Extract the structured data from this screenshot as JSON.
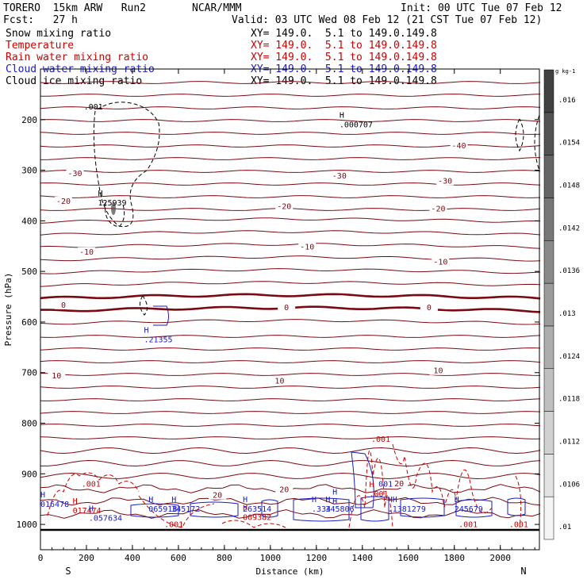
{
  "header": {
    "model": "TORERO  15km ARW   Run2",
    "org": "NCAR/MMM",
    "init": "Init: 00 UTC Tue 07 Feb 12",
    "fcst": "Fcst:   27 h",
    "valid": "Valid: 03 UTC Wed 08 Feb 12 (21 CST Tue 07 Feb 12)"
  },
  "legend": [
    {
      "name": "Snow mixing ratio",
      "color": "#000000",
      "xy": "XY= 149.0.  5.1 to 149.0.149.8"
    },
    {
      "name": "Temperature",
      "color": "#cc0000",
      "xy": "XY= 149.0.  5.1 to 149.0.149.8"
    },
    {
      "name": "Rain water mixing ratio",
      "color": "#cc0000",
      "xy": "XY= 149.0.  5.1 to 149.0.149.8"
    },
    {
      "name": "Cloud water mixing ratio",
      "color": "#1a1ac8",
      "xy": "XY= 149.0.  5.1 to 149.0.149.8"
    },
    {
      "name": "Cloud ice mixing ratio",
      "color": "#000000",
      "xy": "XY= 149.0.  5.1 to 149.0.149.8"
    }
  ],
  "chart_data": {
    "type": "cross-section",
    "xlabel": "Distance (km)",
    "ylabel": "Pressure (hPa)",
    "xlim": [
      0,
      2170
    ],
    "ylim": [
      1050,
      100
    ],
    "x_ticks": [
      0,
      200,
      400,
      600,
      800,
      1000,
      1200,
      1400,
      1600,
      1800,
      2000
    ],
    "y_ticks": [
      200,
      300,
      400,
      500,
      600,
      700,
      800,
      900,
      1000
    ],
    "left_end": "S",
    "right_end": "N",
    "colorbar": {
      "unit": "g kg-1",
      "ticks": [
        ".01",
        ".0106",
        ".0112",
        ".0118",
        ".0124",
        ".013",
        ".0136",
        ".0142",
        ".0148",
        ".0154",
        ".016"
      ]
    },
    "temperature_labels": [
      {
        "text": "-30",
        "x": 150,
        "p": 310
      },
      {
        "text": "-20",
        "x": 100,
        "p": 365
      },
      {
        "text": "-10",
        "x": 200,
        "p": 465
      },
      {
        "text": "0",
        "x": 100,
        "p": 570
      },
      {
        "text": "0",
        "x": 1070,
        "p": 575
      },
      {
        "text": "0",
        "x": 1690,
        "p": 575
      },
      {
        "text": "-10",
        "x": 1160,
        "p": 455
      },
      {
        "text": "-10",
        "x": 1740,
        "p": 485
      },
      {
        "text": "-20",
        "x": 1060,
        "p": 375
      },
      {
        "text": "-20",
        "x": 1730,
        "p": 380
      },
      {
        "text": "-30",
        "x": 1300,
        "p": 315
      },
      {
        "text": "-30",
        "x": 1760,
        "p": 325
      },
      {
        "text": "-40",
        "x": 1820,
        "p": 255
      },
      {
        "text": "10",
        "x": 70,
        "p": 710
      },
      {
        "text": "10",
        "x": 1040,
        "p": 720
      },
      {
        "text": "10",
        "x": 1730,
        "p": 700
      },
      {
        "text": "20",
        "x": 770,
        "p": 946
      },
      {
        "text": "20",
        "x": 1060,
        "p": 935
      },
      {
        "text": "20",
        "x": 1560,
        "p": 923
      }
    ],
    "extrema": [
      {
        "mark": "H",
        "value": ".000707",
        "x": 1300,
        "p": 215,
        "color": "#000000"
      },
      {
        "mark": "H",
        "value": "125939",
        "x": 250,
        "p": 370,
        "color": "#000000"
      },
      {
        "mark": "H",
        "value": ".21355",
        "x": 450,
        "p": 640,
        "color": "#1a1ac8"
      },
      {
        "mark": "H",
        "value": "016478",
        "x": 0,
        "p": 965,
        "color": "#1a1ac8"
      },
      {
        "mark": "H",
        "value": "017474",
        "x": 140,
        "p": 978,
        "color": "#cc0000"
      },
      {
        "mark": "H",
        "value": ".057634",
        "x": 210,
        "p": 993,
        "color": "#1a1ac8"
      },
      {
        "mark": "H",
        "value": "06591B",
        "x": 470,
        "p": 975,
        "color": "#1a1ac8"
      },
      {
        "mark": "H",
        "value": "345172",
        "x": 570,
        "p": 975,
        "color": "#1a1ac8"
      },
      {
        "mark": "H",
        "value": "263514",
        "x": 880,
        "p": 975,
        "color": "#1a1ac8"
      },
      {
        "mark": "H",
        "value": "009382",
        "x": 880,
        "p": 991,
        "color": "#cc0000"
      },
      {
        "mark": "H",
        "value": ".334",
        "x": 1180,
        "p": 975,
        "color": "#1a1ac8"
      },
      {
        "mark": "H",
        "value": "345806",
        "x": 1240,
        "p": 975,
        "color": "#1a1ac8"
      },
      {
        "mark": "H",
        "value": "H",
        "x": 1270,
        "p": 960,
        "color": "#1a1ac8"
      },
      {
        "mark": "HH",
        "value": ".1381279",
        "x": 1510,
        "p": 975,
        "color": "#1a1ac8"
      },
      {
        "mark": "H",
        "value": "245679",
        "x": 1800,
        "p": 975,
        "color": "#1a1ac8"
      },
      {
        "mark": "H",
        "value": ".001",
        "x": 1430,
        "p": 945,
        "color": "#cc0000"
      },
      {
        "mark": "",
        "value": "001",
        "x": 1470,
        "p": 925,
        "color": "#1a1ac8"
      }
    ],
    "snow_labels": [
      {
        "text": ".001",
        "x": 230,
        "p": 180
      },
      {
        "text": ".001",
        "x": 220,
        "p": 925
      },
      {
        "text": ".001",
        "x": 580,
        "p": 1005
      },
      {
        "text": ".001",
        "x": 1480,
        "p": 837
      },
      {
        "text": ".001",
        "x": 1860,
        "p": 1005
      },
      {
        "text": ".001",
        "x": 2080,
        "p": 1005
      }
    ]
  }
}
